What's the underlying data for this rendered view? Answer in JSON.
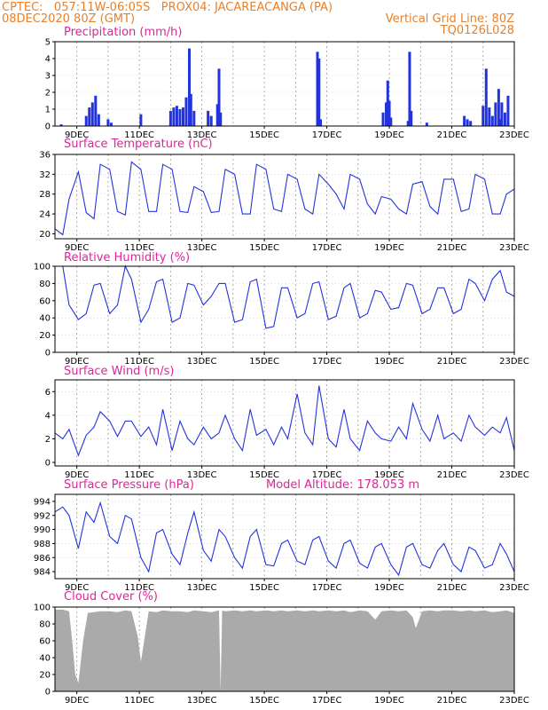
{
  "header": {
    "left1": "CPTEC:   057:11W-06:05S   PROX04: JACAREACANGA (PA)",
    "left2": "08DEC2020 80Z (GMT)",
    "right1": "Vertical Grid Line: 80Z",
    "right2": "TQ0126L028"
  },
  "colors": {
    "header": "#e8802a",
    "panel_title": "#e0249a",
    "series": "#2233dd",
    "cloud": "#aaaaaa",
    "bars": "#2233dd"
  },
  "chart_data": [
    {
      "type": "bar",
      "title": "Precipitation (mm/h)",
      "x_tick_labels": [
        "9DEC",
        "11DEC",
        "13DEC",
        "15DEC",
        "17DEC",
        "19DEC",
        "21DEC",
        "23DEC"
      ],
      "xlim_days": [
        8.3,
        23.0
      ],
      "ylim": [
        0,
        5
      ],
      "yticks": [
        0,
        1,
        2,
        3,
        4,
        5
      ],
      "x_day": [
        8.5,
        9.3,
        9.4,
        9.5,
        9.6,
        9.7,
        10.0,
        10.1,
        11.05,
        12.0,
        12.1,
        12.2,
        12.3,
        12.4,
        12.5,
        12.6,
        12.65,
        12.75,
        13.2,
        13.3,
        13.5,
        13.55,
        13.6,
        16.7,
        16.75,
        16.8,
        18.8,
        18.9,
        18.95,
        19.0,
        19.05,
        19.6,
        19.65,
        19.7,
        20.2,
        21.4,
        21.5,
        21.6,
        22.0,
        22.1,
        22.2,
        22.3,
        22.4,
        22.5,
        22.55,
        22.6,
        22.7,
        22.8
      ],
      "values": [
        0.1,
        0.6,
        1.1,
        1.4,
        1.8,
        0.7,
        0.4,
        0.2,
        0.7,
        0.9,
        1.1,
        1.2,
        1.0,
        1.1,
        1.7,
        4.6,
        1.9,
        0.9,
        0.9,
        0.6,
        1.3,
        3.4,
        0.8,
        4.4,
        4.0,
        0.4,
        0.8,
        1.4,
        2.7,
        1.5,
        0.5,
        0.3,
        4.4,
        0.9,
        0.2,
        0.6,
        0.4,
        0.3,
        1.2,
        3.4,
        1.1,
        0.6,
        1.4,
        2.2,
        0.4,
        1.4,
        0.8,
        1.8
      ]
    },
    {
      "type": "line",
      "title": "Surface Temperature (nC)",
      "x_tick_labels": [
        "9DEC",
        "11DEC",
        "13DEC",
        "15DEC",
        "17DEC",
        "19DEC",
        "21DEC",
        "23DEC"
      ],
      "xlim_days": [
        8.3,
        23.0
      ],
      "ylim": [
        19,
        36
      ],
      "yticks": [
        20,
        24,
        28,
        32,
        36
      ],
      "x_day": [
        8.3,
        8.55,
        8.75,
        9.05,
        9.3,
        9.55,
        9.75,
        10.05,
        10.3,
        10.55,
        10.75,
        11.05,
        11.3,
        11.55,
        11.75,
        12.05,
        12.3,
        12.55,
        12.75,
        13.05,
        13.3,
        13.55,
        13.75,
        14.05,
        14.3,
        14.55,
        14.75,
        15.05,
        15.3,
        15.55,
        15.75,
        16.05,
        16.3,
        16.55,
        16.75,
        17.05,
        17.3,
        17.55,
        17.75,
        18.05,
        18.3,
        18.55,
        18.75,
        19.05,
        19.3,
        19.55,
        19.75,
        20.05,
        20.3,
        20.55,
        20.75,
        21.05,
        21.3,
        21.55,
        21.75,
        22.05,
        22.3,
        22.55,
        22.75,
        23.0
      ],
      "values": [
        21,
        19.8,
        27,
        32.5,
        24.3,
        23,
        34,
        33,
        24.5,
        23.8,
        34.5,
        33,
        24.5,
        24.5,
        34,
        33,
        24.5,
        24.3,
        29.5,
        28.5,
        24.3,
        24.5,
        33,
        32,
        24,
        24,
        34,
        33,
        25,
        24.5,
        32,
        31,
        25,
        24,
        32,
        30,
        28,
        25,
        32,
        31,
        26,
        24,
        27.5,
        27,
        25,
        24,
        30,
        30.5,
        25.5,
        24,
        31,
        31,
        24.5,
        25,
        32,
        31,
        24,
        24,
        28,
        29
      ]
    },
    {
      "type": "line",
      "title": "Relative Humidity (%)",
      "x_tick_labels": [
        "9DEC",
        "11DEC",
        "13DEC",
        "15DEC",
        "17DEC",
        "19DEC",
        "21DEC",
        "23DEC"
      ],
      "xlim_days": [
        8.3,
        23.0
      ],
      "ylim": [
        0,
        100
      ],
      "yticks": [
        0,
        20,
        40,
        60,
        80,
        100
      ],
      "x_day": [
        8.3,
        8.55,
        8.75,
        9.05,
        9.3,
        9.55,
        9.75,
        10.05,
        10.3,
        10.55,
        10.75,
        11.05,
        11.3,
        11.55,
        11.75,
        12.05,
        12.3,
        12.55,
        12.75,
        13.05,
        13.3,
        13.55,
        13.75,
        14.05,
        14.3,
        14.55,
        14.75,
        15.05,
        15.3,
        15.55,
        15.75,
        16.05,
        16.3,
        16.55,
        16.75,
        17.05,
        17.3,
        17.55,
        17.75,
        18.05,
        18.3,
        18.55,
        18.75,
        19.05,
        19.3,
        19.55,
        19.75,
        20.05,
        20.3,
        20.55,
        20.75,
        21.05,
        21.3,
        21.55,
        21.75,
        22.05,
        22.3,
        22.55,
        22.75,
        23.0
      ],
      "values": [
        100,
        100,
        55,
        38,
        45,
        78,
        80,
        45,
        55,
        100,
        85,
        35,
        50,
        82,
        85,
        35,
        40,
        80,
        78,
        55,
        65,
        80,
        80,
        35,
        38,
        82,
        85,
        28,
        30,
        75,
        75,
        40,
        45,
        80,
        82,
        38,
        42,
        75,
        80,
        40,
        45,
        72,
        70,
        50,
        52,
        80,
        78,
        45,
        50,
        75,
        75,
        45,
        50,
        85,
        80,
        60,
        85,
        95,
        70,
        65
      ]
    },
    {
      "type": "line",
      "title": "Surface Wind (m/s)",
      "x_tick_labels": [
        "9DEC",
        "11DEC",
        "13DEC",
        "15DEC",
        "17DEC",
        "19DEC",
        "21DEC",
        "23DEC"
      ],
      "xlim_days": [
        8.3,
        23.0
      ],
      "ylim": [
        -0.3,
        7
      ],
      "yticks": [
        0,
        2,
        4,
        6
      ],
      "x_day": [
        8.3,
        8.55,
        8.75,
        9.05,
        9.3,
        9.55,
        9.75,
        10.05,
        10.3,
        10.55,
        10.75,
        11.05,
        11.3,
        11.55,
        11.75,
        12.05,
        12.3,
        12.55,
        12.75,
        13.05,
        13.3,
        13.55,
        13.75,
        14.05,
        14.3,
        14.55,
        14.75,
        15.05,
        15.3,
        15.55,
        15.75,
        16.05,
        16.3,
        16.55,
        16.75,
        17.05,
        17.3,
        17.55,
        17.75,
        18.05,
        18.3,
        18.55,
        18.75,
        19.05,
        19.3,
        19.55,
        19.75,
        20.05,
        20.3,
        20.55,
        20.75,
        21.05,
        21.3,
        21.55,
        21.75,
        22.05,
        22.3,
        22.55,
        22.75,
        23.0
      ],
      "values": [
        2.5,
        2,
        2.8,
        0.6,
        2.3,
        3,
        4.3,
        3.5,
        2.2,
        3.5,
        3.5,
        2.2,
        3,
        1.5,
        4.5,
        1,
        3.5,
        2,
        1.5,
        3,
        2,
        2.5,
        4,
        2,
        1,
        4.5,
        2.3,
        2.8,
        1.5,
        3,
        2,
        5.8,
        2.5,
        1.5,
        6.5,
        2,
        1.3,
        4.5,
        2,
        1,
        3.5,
        2.5,
        2,
        1.8,
        3,
        2,
        5,
        2.8,
        1.8,
        4,
        2,
        2.5,
        1.8,
        4,
        3,
        2.3,
        3,
        2.5,
        3.8,
        1
      ]
    },
    {
      "type": "line",
      "title": "Surface Pressure (hPa)",
      "annotation": "Model Altitude: 178.053 m",
      "x_tick_labels": [
        "9DEC",
        "11DEC",
        "13DEC",
        "15DEC",
        "17DEC",
        "19DEC",
        "21DEC",
        "23DEC"
      ],
      "xlim_days": [
        8.3,
        23.0
      ],
      "ylim": [
        983,
        995
      ],
      "yticks": [
        984,
        986,
        988,
        990,
        992,
        994
      ],
      "x_day": [
        8.3,
        8.55,
        8.75,
        9.05,
        9.3,
        9.55,
        9.75,
        10.05,
        10.3,
        10.55,
        10.75,
        11.05,
        11.3,
        11.55,
        11.75,
        12.05,
        12.3,
        12.55,
        12.75,
        13.05,
        13.3,
        13.55,
        13.75,
        14.05,
        14.3,
        14.55,
        14.75,
        15.05,
        15.3,
        15.55,
        15.75,
        16.05,
        16.3,
        16.55,
        16.75,
        17.05,
        17.3,
        17.55,
        17.75,
        18.05,
        18.3,
        18.55,
        18.75,
        19.05,
        19.3,
        19.55,
        19.75,
        20.05,
        20.3,
        20.55,
        20.75,
        21.05,
        21.3,
        21.55,
        21.75,
        22.05,
        22.3,
        22.55,
        22.75,
        23.0
      ],
      "values": [
        992.5,
        993.2,
        992,
        987.3,
        992.5,
        991,
        993.8,
        989,
        988,
        992,
        991.5,
        986,
        984,
        989.5,
        990,
        986.5,
        985,
        989.5,
        992.5,
        987,
        985.5,
        990,
        989,
        986,
        984.5,
        989,
        990,
        985,
        984.8,
        988,
        988.5,
        985.5,
        985,
        988.5,
        989,
        985.5,
        984.5,
        988,
        988.5,
        985.2,
        984.5,
        987.5,
        988,
        985,
        983.5,
        987.5,
        988,
        985,
        984.5,
        987,
        988,
        985,
        984,
        987.5,
        987,
        984.5,
        985,
        988,
        986.5,
        984
      ]
    },
    {
      "type": "area",
      "title": "Cloud Cover (%)",
      "x_tick_labels": [
        "9DEC",
        "11DEC",
        "13DEC",
        "15DEC",
        "17DEC",
        "19DEC",
        "21DEC",
        "23DEC"
      ],
      "xlim_days": [
        8.3,
        23.0
      ],
      "ylim": [
        0,
        100
      ],
      "yticks": [
        0,
        20,
        40,
        60,
        80,
        100
      ],
      "x_day": [
        8.3,
        8.55,
        8.75,
        8.85,
        8.95,
        9.05,
        9.2,
        9.35,
        9.55,
        9.75,
        10.05,
        10.3,
        10.55,
        10.75,
        10.95,
        11.05,
        11.3,
        11.55,
        11.75,
        12.05,
        12.3,
        12.55,
        12.75,
        13.05,
        13.3,
        13.55,
        13.6,
        13.65,
        13.75,
        14.05,
        14.3,
        14.55,
        14.75,
        15.05,
        15.3,
        15.55,
        15.75,
        16.05,
        16.3,
        16.55,
        16.75,
        17.05,
        17.3,
        17.55,
        17.75,
        18.05,
        18.3,
        18.55,
        18.75,
        19.05,
        19.3,
        19.55,
        19.75,
        19.85,
        20.05,
        20.3,
        20.55,
        20.75,
        21.05,
        21.3,
        21.55,
        21.75,
        22.05,
        22.3,
        22.55,
        22.75,
        23.0
      ],
      "values": [
        97,
        97,
        95,
        60,
        20,
        10,
        60,
        93,
        94,
        95,
        95,
        94,
        96,
        95,
        65,
        35,
        95,
        94,
        96,
        95,
        95,
        94,
        96,
        95,
        94,
        96,
        0,
        96,
        95,
        96,
        95,
        96,
        95,
        96,
        95,
        96,
        95,
        96,
        95,
        96,
        95,
        96,
        95,
        96,
        94,
        96,
        95,
        85,
        95,
        96,
        95,
        96,
        88,
        75,
        95,
        96,
        95,
        96,
        96,
        95,
        96,
        95,
        96,
        94,
        95,
        96,
        93
      ]
    }
  ]
}
